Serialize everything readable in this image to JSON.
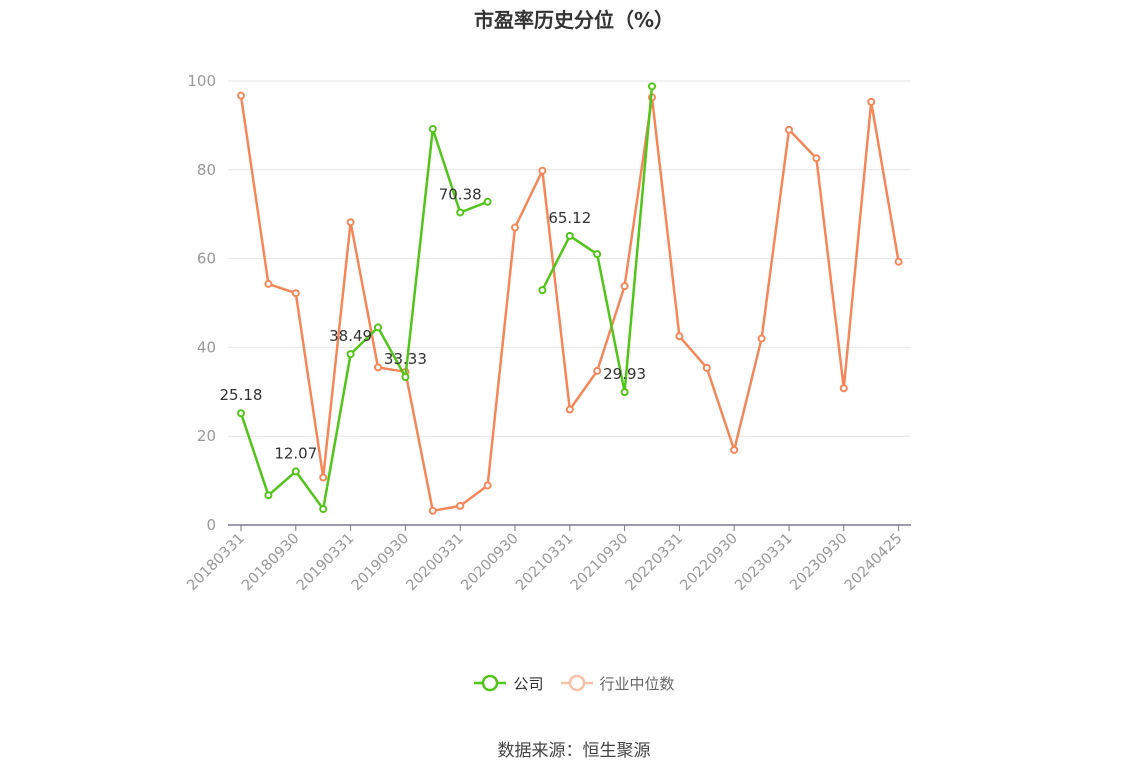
{
  "chart_data": {
    "type": "line",
    "title": "市盈率历史分位（%）",
    "ylim": [
      0,
      100
    ],
    "yticks": [
      0,
      20,
      40,
      60,
      80,
      100
    ],
    "x_tick_labels": [
      "20180331",
      "20180930",
      "20190331",
      "20190930",
      "20200331",
      "20200930",
      "20210331",
      "20210930",
      "20220331",
      "20220930",
      "20230331",
      "20230930",
      "20240425"
    ],
    "x": [
      "20180331",
      "20180630",
      "20180930",
      "20181231",
      "20190331",
      "20190630",
      "20190930",
      "20191231",
      "20200331",
      "20200630",
      "20200930",
      "20201231",
      "20210331",
      "20210630",
      "20210930",
      "20211231",
      "20220331",
      "20220630",
      "20220930",
      "20221231",
      "20230331",
      "20230630",
      "20230930",
      "20231231",
      "20240425"
    ],
    "series": [
      {
        "name": "公司",
        "color": "#52c41a",
        "values": [
          25.18,
          6.7,
          12.07,
          3.6,
          38.49,
          44.5,
          33.33,
          89.2,
          70.38,
          72.8,
          null,
          52.9,
          65.12,
          61.0,
          29.93,
          98.8,
          null,
          null,
          null,
          null,
          null,
          null,
          null,
          null,
          null
        ],
        "data_labels": {
          "0": "25.18",
          "2": "12.07",
          "4": "38.49",
          "6": "33.33",
          "8": "70.38",
          "12": "65.12",
          "14": "29.93"
        }
      },
      {
        "name": "行业中位数",
        "color": "#f4875a",
        "values": [
          96.7,
          54.3,
          52.2,
          10.7,
          68.2,
          35.5,
          34.5,
          3.2,
          4.3,
          8.9,
          67.0,
          79.8,
          26.0,
          34.7,
          53.8,
          96.3,
          42.5,
          35.4,
          16.9,
          42.0,
          89.0,
          82.6,
          30.8,
          95.3,
          59.3
        ]
      }
    ],
    "grid": true,
    "legend_position": "bottom-center"
  },
  "legend": {
    "company_label": "公司",
    "industry_label": "行业中位数"
  },
  "source": "数据来源：恒生聚源"
}
